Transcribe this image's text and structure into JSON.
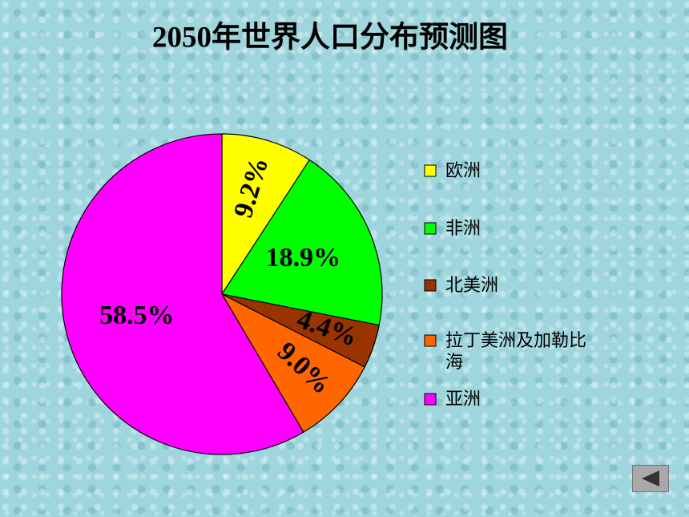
{
  "chart_data": {
    "type": "pie",
    "title": "2050年世界人口分布预测图",
    "categories": [
      "欧洲",
      "非洲",
      "北美洲",
      "拉丁美洲及加勒比海",
      "亚洲"
    ],
    "values": [
      9.2,
      18.9,
      4.4,
      9.0,
      58.5
    ],
    "value_labels": [
      "9.2%",
      "18.9%",
      "4.4%",
      "9.0%",
      "58.5%"
    ],
    "colors": [
      "#ffff00",
      "#00ff00",
      "#993300",
      "#ff6600",
      "#ff00ff"
    ],
    "legend": "right"
  }
}
